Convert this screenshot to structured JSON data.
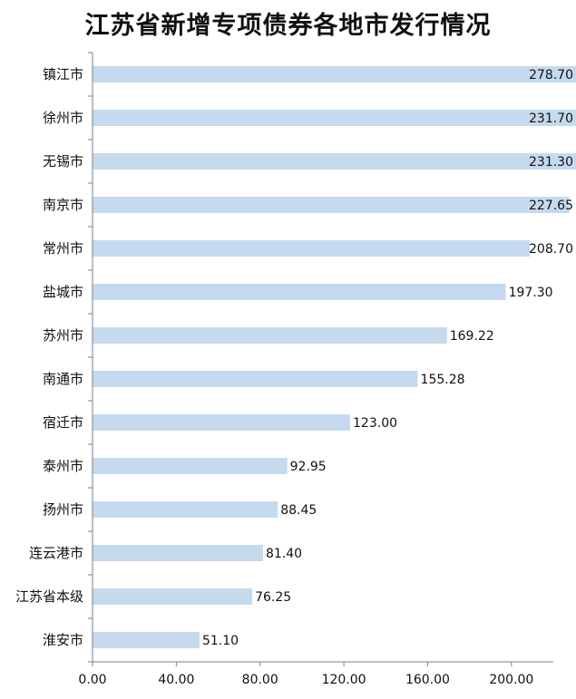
{
  "chart_data": {
    "type": "bar",
    "orientation": "horizontal",
    "title": "江苏省新增专项债券各地市发行情况",
    "xlabel": "",
    "ylabel": "",
    "categories": [
      "镇江市",
      "徐州市",
      "无锡市",
      "南京市",
      "常州市",
      "盐城市",
      "苏州市",
      "南通市",
      "宿迁市",
      "泰州市",
      "扬州市",
      "连云港市",
      "江苏省本级",
      "淮安市"
    ],
    "values": [
      278.7,
      231.7,
      231.3,
      227.65,
      208.7,
      197.3,
      169.22,
      155.28,
      123.0,
      92.95,
      88.45,
      81.4,
      76.25,
      51.1
    ],
    "value_labels": [
      "278.70",
      "231.70",
      "231.30",
      "227.65",
      "208.70",
      "197.30",
      "169.22",
      "155.28",
      "123.00",
      "92.95",
      "88.45",
      "81.40",
      "76.25",
      "51.10"
    ],
    "xlim": [
      0,
      220
    ],
    "x_ticks": [
      "0.00",
      "40.00",
      "80.00",
      "120.00",
      "160.00",
      "200.00"
    ],
    "grid": false,
    "bar_color": "#c5daee",
    "axis_color": "#7f7f7f"
  }
}
